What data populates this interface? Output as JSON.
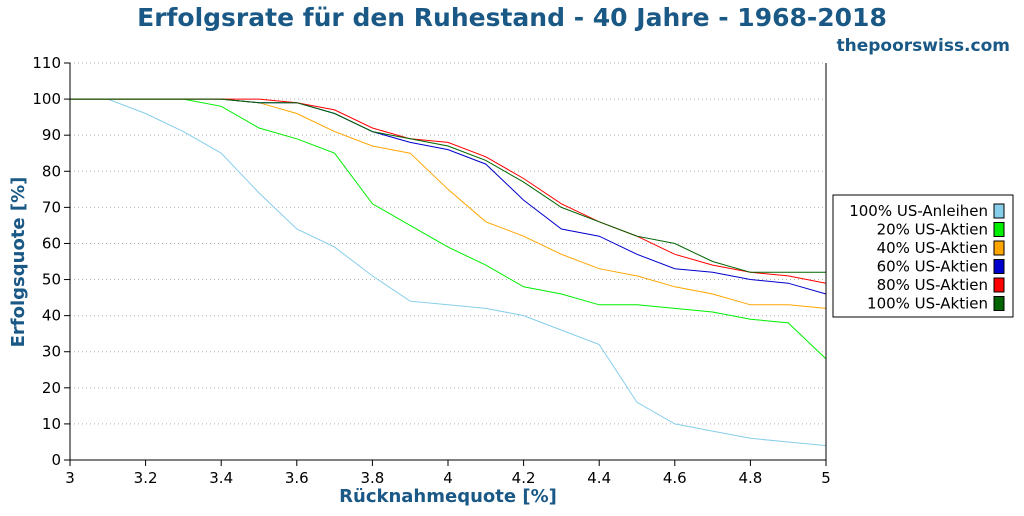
{
  "header": {
    "title": "Erfolgsrate für den Ruhestand - 40 Jahre - 1968-2018",
    "source": "thepoorswiss.com"
  },
  "colors": {
    "title": "#1a5886",
    "grid": "#b0b0b0",
    "axis": "#000000"
  },
  "chart_data": {
    "type": "line",
    "title": "Erfolgsrate für den Ruhestand - 40 Jahre - 1968-2018",
    "xlabel": "Rücknahmequote [%]",
    "ylabel": "Erfolgsquote [%]",
    "xlim": [
      3,
      5
    ],
    "ylim": [
      0,
      110
    ],
    "grid": "horizontal-dotted",
    "legend_position": "right",
    "x_ticks": [
      "3",
      "3.2",
      "3.4",
      "3.6",
      "3.8",
      "4",
      "4.2",
      "4.4",
      "4.6",
      "4.8",
      "5"
    ],
    "y_ticks": [
      "0",
      "10",
      "20",
      "30",
      "40",
      "50",
      "60",
      "70",
      "80",
      "90",
      "100",
      "110"
    ],
    "x": [
      3.0,
      3.1,
      3.2,
      3.3,
      3.4,
      3.5,
      3.6,
      3.7,
      3.8,
      3.9,
      4.0,
      4.1,
      4.2,
      4.3,
      4.4,
      4.5,
      4.6,
      4.7,
      4.8,
      4.9,
      5.0
    ],
    "series": [
      {
        "name": "100% US-Anleihen",
        "color": "#87ceeb",
        "values": [
          100,
          100,
          96,
          91,
          85,
          74,
          64,
          59,
          51,
          44,
          43,
          42,
          40,
          36,
          32,
          16,
          10,
          8,
          6,
          5,
          4
        ]
      },
      {
        "name": "20% US-Aktien",
        "color": "#00ee00",
        "values": [
          100,
          100,
          100,
          100,
          98,
          92,
          89,
          85,
          71,
          65,
          59,
          54,
          48,
          46,
          43,
          43,
          42,
          41,
          39,
          38,
          28
        ]
      },
      {
        "name": "40% US-Aktien",
        "color": "#ffa500",
        "values": [
          100,
          100,
          100,
          100,
          100,
          99,
          96,
          91,
          87,
          85,
          75,
          66,
          62,
          57,
          53,
          51,
          48,
          46,
          43,
          43,
          42
        ]
      },
      {
        "name": "60% US-Aktien",
        "color": "#0000cc",
        "values": [
          100,
          100,
          100,
          100,
          100,
          99,
          99,
          96,
          91,
          88,
          86,
          82,
          72,
          64,
          62,
          57,
          53,
          52,
          50,
          49,
          46
        ]
      },
      {
        "name": "80% US-Aktien",
        "color": "#ff0000",
        "values": [
          100,
          100,
          100,
          100,
          100,
          100,
          99,
          97,
          92,
          89,
          88,
          84,
          78,
          71,
          66,
          62,
          57,
          54,
          52,
          51,
          49
        ]
      },
      {
        "name": "100% US-Aktien",
        "color": "#006400",
        "values": [
          100,
          100,
          100,
          100,
          100,
          99,
          99,
          96,
          91,
          89,
          87,
          83,
          77,
          70,
          66,
          62,
          60,
          55,
          52,
          52,
          52
        ]
      }
    ]
  }
}
